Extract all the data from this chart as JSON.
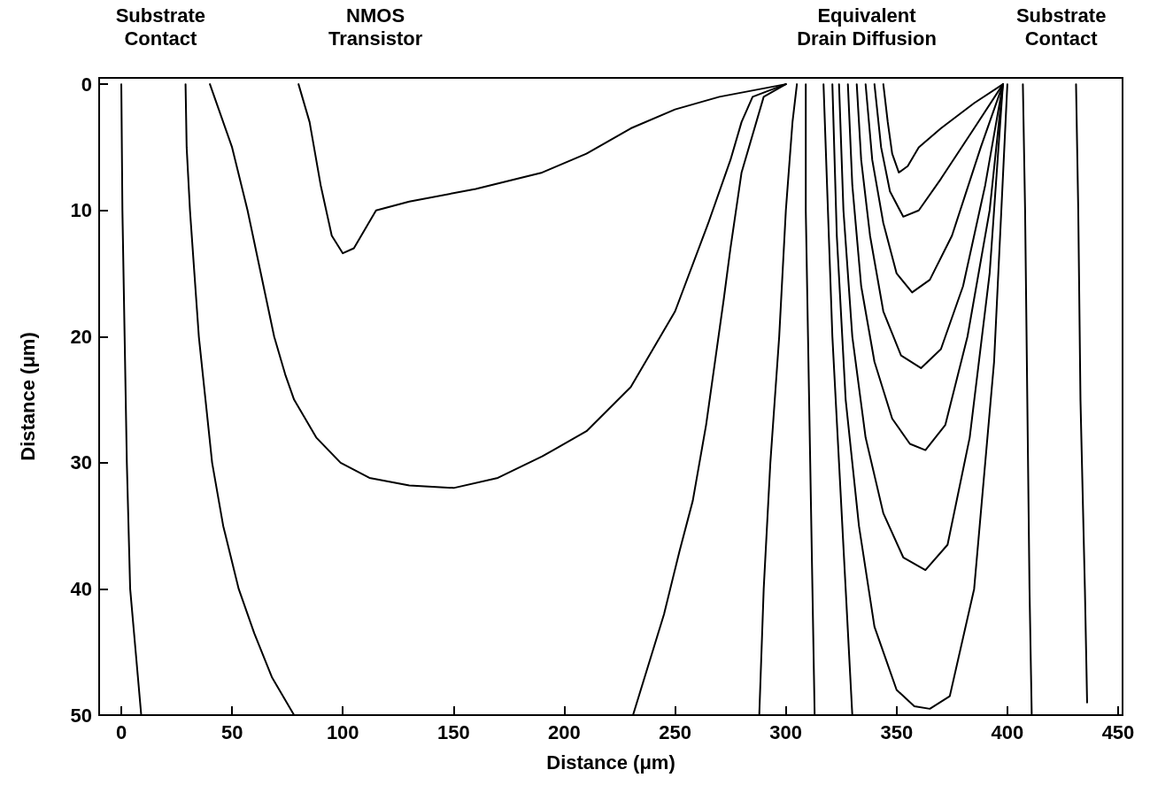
{
  "chart_data": {
    "type": "line",
    "xlabel": "Distance (μm)",
    "ylabel": "Distance (μm)",
    "xlim": [
      -10,
      452
    ],
    "ylim": [
      50,
      -0.5
    ],
    "xticks": [
      0,
      50,
      100,
      150,
      200,
      250,
      300,
      350,
      400,
      450
    ],
    "yticks": [
      0,
      10,
      20,
      30,
      40,
      50
    ],
    "marker": "none",
    "line_style": "solid",
    "annotations": [
      "Substrate\nContact",
      "NMOS\nTransistor",
      "Equivalent\nDrain Diffusion",
      "Substrate\nContact"
    ],
    "series": [
      {
        "color": "#000000",
        "x": [
          0,
          0.5,
          1.5,
          2.5,
          4,
          6.5,
          9
        ],
        "values": [
          0,
          10,
          20,
          30,
          40,
          45,
          50
        ]
      },
      {
        "color": "#000000",
        "x": [
          29,
          29.5,
          31,
          33,
          35,
          38,
          41,
          46,
          53,
          60,
          68,
          78
        ],
        "values": [
          0,
          5,
          10,
          15,
          20,
          25,
          30,
          35,
          40,
          43.5,
          47,
          50
        ]
      },
      {
        "color": "#000000",
        "x": [
          40,
          44,
          50,
          57,
          63,
          69,
          74,
          78,
          88,
          99,
          112,
          130,
          150,
          170,
          190,
          210,
          230,
          250,
          265,
          275,
          280,
          285,
          300
        ],
        "values": [
          0,
          2,
          5,
          10,
          15,
          20,
          23,
          25,
          28,
          30,
          31.2,
          31.8,
          32,
          31.2,
          29.5,
          27.5,
          24,
          18,
          11,
          6,
          3,
          1,
          0
        ]
      },
      {
        "color": "#000000",
        "x": [
          80,
          85,
          90,
          95,
          100,
          105,
          115,
          130,
          160,
          190,
          210,
          230,
          250,
          270,
          300
        ],
        "values": [
          0,
          3,
          8,
          12,
          13.4,
          13,
          10,
          9.3,
          8.3,
          7,
          5.5,
          3.5,
          2,
          1,
          0
        ]
      },
      {
        "color": "#000000",
        "x": [
          231,
          238,
          245,
          252,
          258,
          264,
          268,
          272,
          275,
          280,
          290,
          300
        ],
        "values": [
          50,
          46,
          42,
          37,
          33,
          27,
          22,
          17,
          13,
          7,
          1,
          0
        ]
      },
      {
        "color": "#000000",
        "x": [
          288,
          290,
          293,
          297,
          300,
          303,
          305
        ],
        "values": [
          50,
          40,
          30,
          20,
          10,
          3,
          0
        ]
      },
      {
        "color": "#000000",
        "x": [
          313,
          312,
          311,
          310,
          309,
          309
        ],
        "values": [
          50,
          40,
          30,
          20,
          10,
          0
        ]
      },
      {
        "color": "#000000",
        "x": [
          330,
          327,
          324,
          321,
          319,
          317
        ],
        "values": [
          50,
          40,
          30,
          20,
          10,
          0
        ]
      },
      {
        "color": "#000000",
        "x": [
          344,
          346,
          348,
          351,
          355,
          360,
          370,
          385,
          398
        ],
        "values": [
          0,
          3,
          5.5,
          7,
          6.5,
          5,
          3.5,
          1.5,
          0
        ]
      },
      {
        "color": "#000000",
        "x": [
          340,
          343,
          347,
          353,
          360,
          370,
          385,
          398
        ],
        "values": [
          0,
          5,
          8.5,
          10.5,
          10,
          7.5,
          3.5,
          0
        ]
      },
      {
        "color": "#000000",
        "x": [
          336,
          339,
          344,
          350,
          357,
          365,
          375,
          388,
          398
        ],
        "values": [
          0,
          6,
          11,
          15,
          16.5,
          15.5,
          12,
          5,
          0
        ]
      },
      {
        "color": "#000000",
        "x": [
          332,
          334,
          338,
          344,
          352,
          361,
          370,
          380,
          390,
          398
        ],
        "values": [
          0,
          6,
          12,
          18,
          21.5,
          22.5,
          21,
          16,
          8,
          0
        ]
      },
      {
        "color": "#000000",
        "x": [
          328,
          330,
          334,
          340,
          348,
          356,
          363,
          372,
          382,
          392,
          398
        ],
        "values": [
          0,
          8,
          16,
          22,
          26.5,
          28.5,
          29,
          27,
          20,
          10,
          0
        ]
      },
      {
        "color": "#000000",
        "x": [
          324,
          326,
          330,
          336,
          344,
          353,
          363,
          373,
          383,
          392,
          398
        ],
        "values": [
          0,
          10,
          20,
          28,
          34,
          37.5,
          38.5,
          36.5,
          28,
          15,
          0
        ]
      },
      {
        "color": "#000000",
        "x": [
          321,
          323,
          327,
          333,
          340,
          350,
          358,
          365,
          374,
          385,
          394,
          400
        ],
        "values": [
          0,
          12,
          25,
          35,
          43,
          48,
          49.3,
          49.5,
          48.5,
          40,
          22,
          0
        ]
      },
      {
        "color": "#000000",
        "x": [
          407,
          408,
          409,
          410,
          411
        ],
        "values": [
          0,
          10,
          25,
          40,
          50
        ]
      },
      {
        "color": "#000000",
        "x": [
          431,
          432,
          433,
          435,
          436
        ],
        "values": [
          0,
          10,
          25,
          40,
          49
        ]
      }
    ]
  }
}
